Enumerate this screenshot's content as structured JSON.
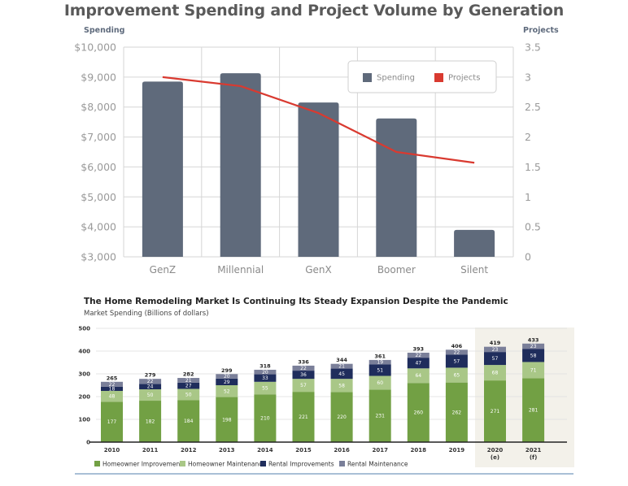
{
  "chart_data": [
    {
      "type": "bar",
      "title": "Improvement Spending and Project Volume by Generation",
      "categories": [
        "GenZ",
        "Millennial",
        "GenX",
        "Boomer",
        "Silent"
      ],
      "series": [
        {
          "name": "Spending",
          "type": "bar",
          "axis": "left",
          "color": "#5f6a7b",
          "values": [
            8850,
            9130,
            8150,
            7620,
            3900
          ]
        },
        {
          "name": "Projects",
          "type": "line",
          "axis": "right",
          "color": "#d93a30",
          "values": [
            3.0,
            2.85,
            2.4,
            1.75,
            1.57
          ]
        }
      ],
      "ylabel": "Spending",
      "y2label": "Projects",
      "ylim": [
        3000,
        10000
      ],
      "y2lim": [
        0,
        3.5
      ],
      "yticks": [
        "$3,000",
        "$4,000",
        "$5,000",
        "$6,000",
        "$7,000",
        "$8,000",
        "$9,000",
        "$10,000"
      ],
      "yticks_values": [
        3000,
        4000,
        5000,
        6000,
        7000,
        8000,
        9000,
        10000
      ],
      "y2ticks": [
        "0",
        "0.5",
        "1",
        "1.5",
        "2",
        "2.5",
        "3",
        "3.5"
      ],
      "y2ticks_values": [
        0,
        0.5,
        1,
        1.5,
        2,
        2.5,
        3,
        3.5
      ],
      "grid": true,
      "legend": {
        "position": "top-right",
        "entries": [
          "Spending",
          "Projects"
        ]
      }
    },
    {
      "type": "bar",
      "stacked": true,
      "title": "The Home Remodeling Market Is Continuing Its Steady Expansion Despite the Pandemic",
      "subtitle": "Market Spending (Billions of dollars)",
      "categories": [
        "2010",
        "2011",
        "2012",
        "2013",
        "2014",
        "2015",
        "2016",
        "2017",
        "2018",
        "2019",
        "2020",
        "2021"
      ],
      "category_notes": [
        "",
        "",
        "",
        "",
        "",
        "",
        "",
        "",
        "",
        "",
        "(e)",
        "(f)"
      ],
      "series": [
        {
          "name": "Homeowner Improvements",
          "color": "#72a044",
          "values": [
            177,
            182,
            184,
            198,
            210,
            221,
            220,
            231,
            260,
            262,
            271,
            281
          ]
        },
        {
          "name": "Homeowner Maintenance",
          "color": "#a9c787",
          "values": [
            48,
            50,
            50,
            52,
            55,
            57,
            58,
            60,
            64,
            65,
            68,
            71
          ]
        },
        {
          "name": "Rental Improvements",
          "color": "#1f2d5c",
          "values": [
            18,
            24,
            27,
            29,
            33,
            36,
            45,
            51,
            47,
            57,
            57,
            58
          ]
        },
        {
          "name": "Rental Maintenance",
          "color": "#7a7f99",
          "values": [
            22,
            22,
            21,
            20,
            20,
            22,
            21,
            19,
            22,
            22,
            23,
            23
          ]
        }
      ],
      "totals": [
        265,
        279,
        282,
        299,
        318,
        336,
        344,
        361,
        393,
        406,
        419,
        433
      ],
      "ylim": [
        0,
        500
      ],
      "yticks": [
        0,
        100,
        200,
        300,
        400,
        500
      ],
      "grid": true,
      "highlight_categories": [
        "2020",
        "2021"
      ],
      "legend": {
        "position": "bottom-left",
        "entries": [
          "Homeowner Improvements",
          "Homeowner Maintenance",
          "Rental Improvements",
          "Rental Maintenance"
        ]
      }
    }
  ]
}
